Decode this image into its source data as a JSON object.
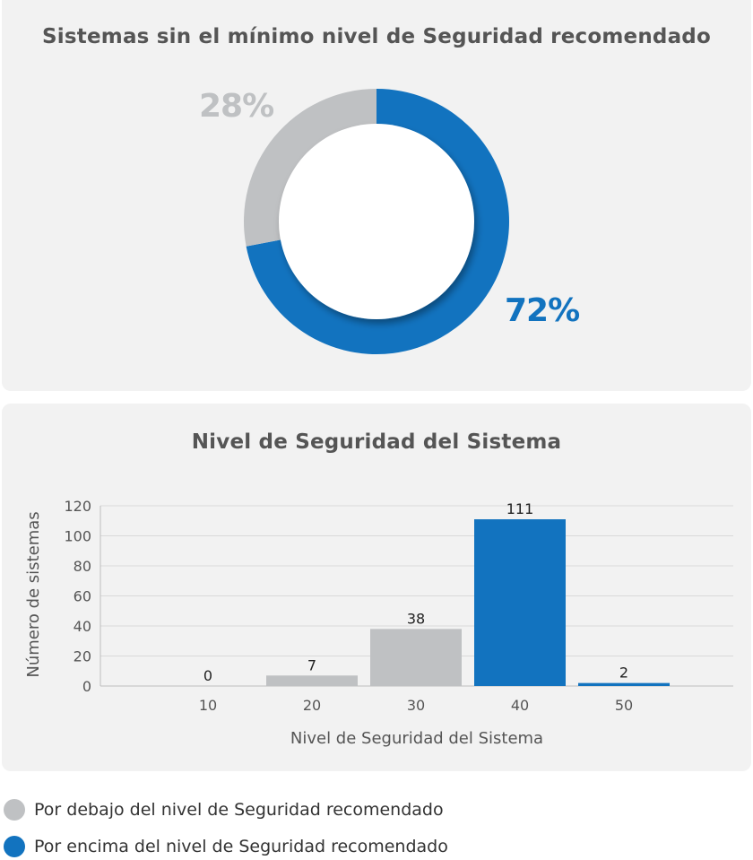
{
  "colors": {
    "below": "#bfc1c3",
    "above": "#1273bf",
    "panel_bg": "#f2f2f2",
    "grid": "#d9d9d9",
    "axis_text": "#555555",
    "label_text": "#222222"
  },
  "legend": {
    "below_label": "Por debajo del nivel de Seguridad recomendado",
    "above_label": "Por encima del nivel de Seguridad recomendado"
  },
  "chart_data": [
    {
      "type": "pie",
      "title": "Sistemas sin el mínimo nivel de Seguridad recomendado",
      "donut": true,
      "slices": [
        {
          "name": "Por debajo del nivel de Seguridad recomendado",
          "value": 28,
          "label": "28%",
          "color": "#bfc1c3"
        },
        {
          "name": "Por encima del nivel de Seguridad recomendado",
          "value": 72,
          "label": "72%",
          "color": "#1273bf"
        }
      ]
    },
    {
      "type": "bar",
      "title": "Nivel de Seguridad del Sistema",
      "xlabel": "Nivel de Seguridad del Sistema",
      "ylabel": "Número de sistemas",
      "categories": [
        "10",
        "20",
        "30",
        "40",
        "50"
      ],
      "values": [
        0,
        7,
        38,
        111,
        2
      ],
      "bar_colors": [
        "#bfc1c3",
        "#bfc1c3",
        "#bfc1c3",
        "#1273bf",
        "#1273bf"
      ],
      "ylim": [
        0,
        120
      ],
      "yticks": [
        "0",
        "20",
        "40",
        "60",
        "80",
        "100",
        "120"
      ],
      "grid": true
    }
  ]
}
